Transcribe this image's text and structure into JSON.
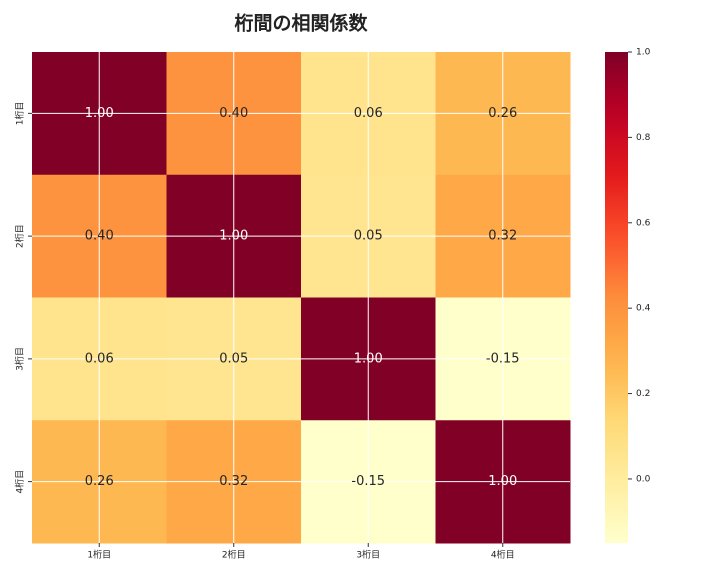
{
  "chart_data": {
    "type": "heatmap",
    "title": "桁間の相関係数",
    "x_categories": [
      "1桁目",
      "2桁目",
      "3桁目",
      "4桁目"
    ],
    "y_categories": [
      "1桁目",
      "2桁目",
      "3桁目",
      "4桁目"
    ],
    "values": [
      [
        1.0,
        0.4,
        0.06,
        0.26
      ],
      [
        0.4,
        1.0,
        0.05,
        0.32
      ],
      [
        0.06,
        0.05,
        1.0,
        -0.15
      ],
      [
        0.26,
        0.32,
        -0.15,
        1.0
      ]
    ],
    "value_labels": [
      [
        "1.00",
        "0.40",
        "0.06",
        "0.26"
      ],
      [
        "0.40",
        "1.00",
        "0.05",
        "0.32"
      ],
      [
        "0.06",
        "0.05",
        "1.00",
        "-0.15"
      ],
      [
        "0.26",
        "0.32",
        "-0.15",
        "1.00"
      ]
    ],
    "colormap": [
      "#ffffcc",
      "#ffeda0",
      "#fed976",
      "#feb24c",
      "#fd8d3c",
      "#fc4e2a",
      "#e31a1c",
      "#bd0026",
      "#800026"
    ],
    "clim": [
      -0.15,
      1.0
    ],
    "cticks": [
      {
        "value": 0,
        "label": "0.0"
      },
      0.2,
      0.4,
      0.6,
      0.8,
      {
        "value": 1,
        "label": "1.0"
      }
    ],
    "grid": true
  }
}
